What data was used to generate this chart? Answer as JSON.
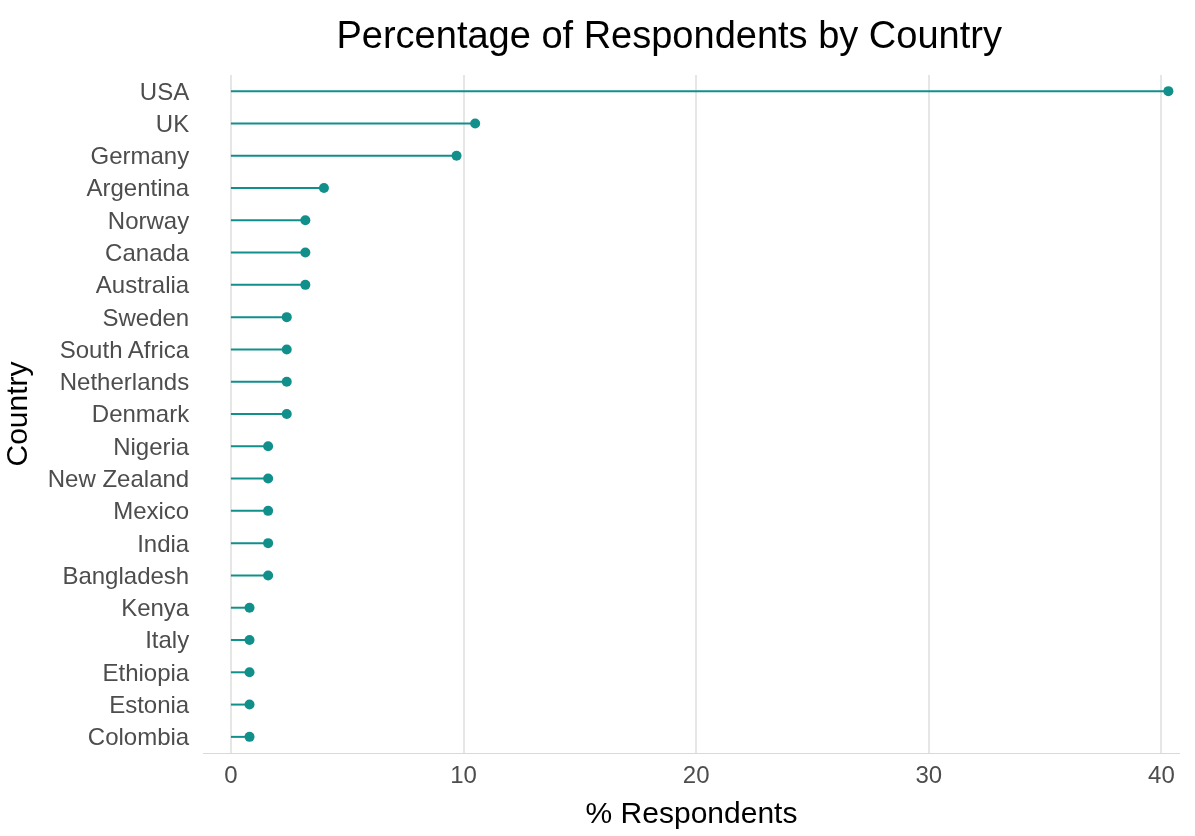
{
  "chart_data": {
    "type": "lollipop",
    "orientation": "horizontal",
    "title": "Percentage of Respondents by Country",
    "xlabel": "% Respondents",
    "ylabel": "Country",
    "categories": [
      "USA",
      "UK",
      "Germany",
      "Argentina",
      "Norway",
      "Canada",
      "Australia",
      "Sweden",
      "South Africa",
      "Netherlands",
      "Denmark",
      "Nigeria",
      "New Zealand",
      "Mexico",
      "India",
      "Bangladesh",
      "Kenya",
      "Italy",
      "Ethiopia",
      "Estonia",
      "Colombia"
    ],
    "values": [
      40.3,
      10.5,
      9.7,
      4.0,
      3.2,
      3.2,
      3.2,
      2.4,
      2.4,
      2.4,
      2.4,
      1.6,
      1.6,
      1.6,
      1.6,
      1.6,
      0.8,
      0.8,
      0.8,
      0.8,
      0.8
    ],
    "color": "#108f8b",
    "xlim": [
      -1.2,
      40.8
    ],
    "xticks": [
      0,
      10,
      20,
      30,
      40
    ],
    "grid": "x",
    "marker": "circle"
  }
}
